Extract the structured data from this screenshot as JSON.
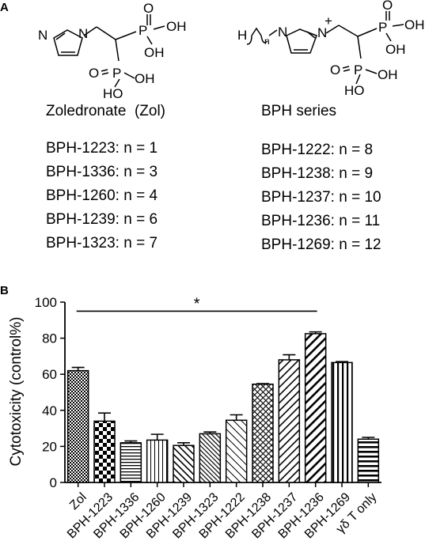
{
  "panels": {
    "a": "A",
    "b": "B"
  },
  "structures": {
    "left": {
      "caption": "Zoledronate  (Zol)"
    },
    "right": {
      "caption": "BPH series"
    },
    "atoms": {
      "n_ring": "N",
      "o": "O",
      "p": "P",
      "oh": "OH",
      "ho": "HO",
      "h": "H",
      "n_sub": "n",
      "plus": "+"
    }
  },
  "series_list": {
    "left": [
      "BPH-1223: n = 1",
      "BPH-1336: n = 3",
      "BPH-1260: n = 4",
      "BPH-1239: n = 6",
      "BPH-1323: n = 7"
    ],
    "right": [
      "BPH-1222: n = 8",
      "BPH-1238: n = 9",
      "BPH-1237: n = 10",
      "BPH-1236: n = 11",
      "BPH-1269: n = 12"
    ]
  },
  "chart_data": {
    "type": "bar",
    "ylabel": "Cytotoxicity (control%)",
    "xlabel": "",
    "ylim": [
      0,
      100
    ],
    "yticks": [
      0,
      20,
      40,
      60,
      80,
      100
    ],
    "categories": [
      "Zol",
      "BPH-1223",
      "BPH-1336",
      "BPH-1260",
      "BPH-1239",
      "BPH-1323",
      "BPH-1222",
      "BPH-1238",
      "BPH-1237",
      "BPH-1236",
      "BPH-1269",
      "γδ T only"
    ],
    "values": [
      62,
      34,
      22,
      23.5,
      20.5,
      27,
      34.5,
      54.5,
      68,
      82.5,
      66.5,
      24
    ],
    "errors": [
      1.8,
      4.5,
      1,
      3.2,
      1.5,
      1,
      3,
      0.3,
      2.8,
      1,
      0.5,
      1
    ],
    "patterns": [
      "dots",
      "checker",
      "hlines",
      "vlines-thin",
      "dlines-left",
      "dlines-left-dense",
      "dlines-left-fine",
      "crosshatch-diag",
      "dlines-right",
      "dlines-right-bold",
      "vlines",
      "hlines-bold"
    ],
    "significance": {
      "label": "*",
      "from": "Zol",
      "to": "BPH-1236",
      "level": 95
    },
    "grid": false
  }
}
